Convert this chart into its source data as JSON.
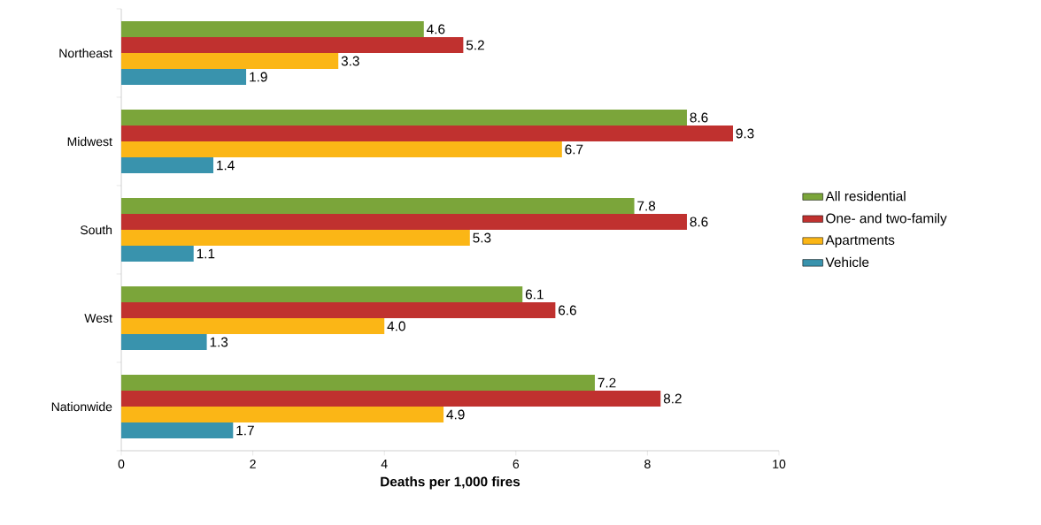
{
  "chart_data": {
    "type": "bar",
    "orientation": "horizontal",
    "xlabel": "Deaths per 1,000 fires",
    "categories": [
      "Northeast",
      "Midwest",
      "South",
      "West",
      "Nationwide"
    ],
    "series": [
      {
        "name": "All residential",
        "color": "#7ba53a",
        "values": [
          4.6,
          8.6,
          7.8,
          6.1,
          7.2
        ],
        "value_labels": [
          "4.6",
          "8.6",
          "7.8",
          "6.1",
          "7.2"
        ]
      },
      {
        "name": "One- and two-family",
        "color": "#c0312f",
        "values": [
          5.2,
          9.3,
          8.6,
          6.6,
          8.2
        ],
        "value_labels": [
          "5.2",
          "9.3",
          "8.6",
          "6.6",
          "8.2"
        ]
      },
      {
        "name": "Apartments",
        "color": "#fbb616",
        "values": [
          3.3,
          6.7,
          5.3,
          4.0,
          4.9
        ],
        "value_labels": [
          "3.3",
          "6.7",
          "5.3",
          "4.0",
          "4.9"
        ]
      },
      {
        "name": "Vehicle",
        "color": "#3993ad",
        "values": [
          1.9,
          1.4,
          1.1,
          1.3,
          1.7
        ],
        "value_labels": [
          "1.9",
          "1.4",
          "1.1",
          "1.3",
          "1.7"
        ]
      }
    ],
    "xlim": [
      0,
      10
    ],
    "xticks": [
      0,
      2,
      4,
      6,
      8,
      10
    ],
    "legend": "right"
  }
}
